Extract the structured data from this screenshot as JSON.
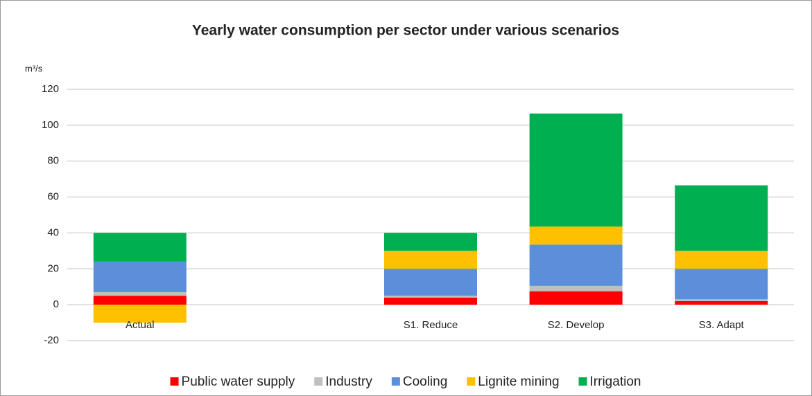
{
  "chart_data": {
    "type": "stacked_bar",
    "title": "Yearly water consumption per sector under various scenarios",
    "y_label": "m³/s",
    "categories": [
      "Actual",
      null,
      "S1. Reduce",
      "S2. Develop",
      "S3. Adapt"
    ],
    "series": [
      {
        "name": "Public water supply",
        "color": "#ff0000",
        "values": [
          5,
          null,
          4,
          7.5,
          2
        ]
      },
      {
        "name": "Industry",
        "color": "#bfbfbf",
        "values": [
          2,
          null,
          1,
          3,
          1
        ]
      },
      {
        "name": "Cooling",
        "color": "#5b8fd9",
        "values": [
          17,
          null,
          15,
          23,
          17
        ]
      },
      {
        "name": "Lignite mining",
        "color": "#ffc000",
        "values": [
          -10,
          null,
          10,
          10,
          10
        ]
      },
      {
        "name": "Irrigation",
        "color": "#00b050",
        "values": [
          16,
          null,
          10,
          63,
          36.5
        ]
      }
    ],
    "ylim": [
      -20,
      120
    ],
    "yticks": [
      -20,
      0,
      20,
      40,
      60,
      80,
      100,
      120
    ],
    "grid": true,
    "legend": "bottom"
  }
}
